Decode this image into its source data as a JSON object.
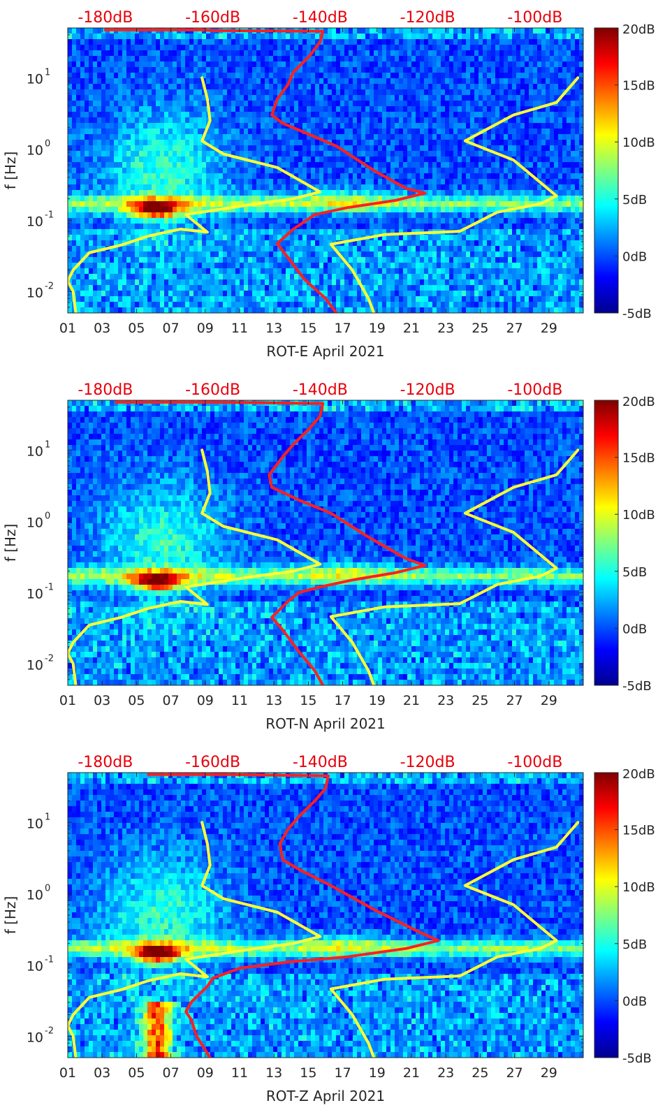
{
  "colors": {
    "jet": [
      "#00008f",
      "#0000ff",
      "#007fff",
      "#00ffff",
      "#7fff7f",
      "#ffff00",
      "#ff7f00",
      "#ff0000",
      "#7f0000"
    ],
    "model_curve": "#ff2020",
    "bound_curve": "#ffff33",
    "top_axis_labels": "#e8000b"
  },
  "chart_data": [
    {
      "type": "heatmap",
      "xlabel": "ROT-E April 2021",
      "ylabel": "f [Hz]",
      "x_ticks": [
        "01",
        "03",
        "05",
        "07",
        "09",
        "11",
        "13",
        "15",
        "17",
        "19",
        "21",
        "23",
        "25",
        "27",
        "29"
      ],
      "x_range_days": [
        1,
        31
      ],
      "y_scale": "log",
      "y_range_hz": [
        0.005,
        50
      ],
      "y_ticks": [
        {
          "exp": "-2",
          "value": 0.01
        },
        {
          "exp": "-1",
          "value": 0.1
        },
        {
          "exp": "0",
          "value": 1
        },
        {
          "exp": "1",
          "value": 10
        }
      ],
      "top_axis_ticks": [
        "-180dB",
        "-160dB",
        "-140dB",
        "-120dB",
        "-100dB"
      ],
      "top_axis_range_db": [
        -187,
        -91
      ],
      "colorbar": {
        "labels": [
          "20dB",
          "15dB",
          "10dB",
          "5dB",
          "0dB",
          "-5dB"
        ],
        "range_db": [
          -5,
          20
        ]
      },
      "series": [
        {
          "color": "red",
          "points": [
            [
              -120.5,
              0.24
            ],
            [
              -124,
              0.28
            ],
            [
              -130,
              0.5
            ],
            [
              -137,
              1.1
            ],
            [
              -142,
              1.6
            ],
            [
              -147,
              2.3
            ],
            [
              -149,
              3.0
            ],
            [
              -148,
              5
            ],
            [
              -146,
              8
            ],
            [
              -145,
              12
            ],
            [
              -142,
              20
            ],
            [
              -140,
              32
            ],
            [
              -139.5,
              45
            ],
            [
              -160,
              46
            ],
            [
              -162,
              47
            ],
            [
              -180,
              47
            ]
          ]
        },
        {
          "color": "red",
          "points": [
            [
              -120.5,
              0.24
            ],
            [
              -126,
              0.19
            ],
            [
              -135,
              0.15
            ],
            [
              -141,
              0.12
            ],
            [
              -143,
              0.095
            ],
            [
              -145,
              0.075
            ],
            [
              -148,
              0.047
            ],
            [
              -146,
              0.03
            ],
            [
              -143,
              0.015
            ],
            [
              -139,
              0.008
            ],
            [
              -137,
              0.005
            ]
          ]
        },
        {
          "color": "yellow",
          "points": [
            [
              -162,
              10
            ],
            [
              -161,
              5
            ],
            [
              -160.5,
              2.5
            ],
            [
              -162,
              1.3
            ],
            [
              -158,
              0.85
            ],
            [
              -148,
              0.55
            ],
            [
              -140,
              0.25
            ],
            [
              -145,
              0.2
            ],
            [
              -152,
              0.17
            ],
            [
              -162,
              0.13
            ],
            [
              -165,
              0.12
            ],
            [
              -161,
              0.068
            ],
            [
              -166,
              0.075
            ],
            [
              -172,
              0.06
            ],
            [
              -177,
              0.045
            ],
            [
              -183,
              0.035
            ],
            [
              -186,
              0.02
            ],
            [
              -187,
              0.014
            ],
            [
              -186,
              0.01
            ],
            [
              -185.5,
              0.005
            ]
          ]
        },
        {
          "color": "yellow",
          "points": [
            [
              -92,
              10
            ],
            [
              -96,
              4.5
            ],
            [
              -104,
              3.0
            ],
            [
              -113,
              1.3
            ],
            [
              -104,
              0.7
            ],
            [
              -96,
              0.22
            ],
            [
              -99,
              0.17
            ],
            [
              -107,
              0.13
            ],
            [
              -114,
              0.07
            ],
            [
              -128,
              0.063
            ],
            [
              -138,
              0.046
            ],
            [
              -134,
              0.02
            ],
            [
              -131,
              0.008
            ],
            [
              -130,
              0.005
            ]
          ]
        }
      ]
    },
    {
      "type": "heatmap",
      "xlabel": "ROT-N April 2021",
      "ylabel": "f [Hz]",
      "x_ticks": [
        "01",
        "03",
        "05",
        "07",
        "09",
        "11",
        "13",
        "15",
        "17",
        "19",
        "21",
        "23",
        "25",
        "27",
        "29"
      ],
      "x_range_days": [
        1,
        31
      ],
      "y_scale": "log",
      "y_range_hz": [
        0.005,
        50
      ],
      "y_ticks": [
        {
          "exp": "-2",
          "value": 0.01
        },
        {
          "exp": "-1",
          "value": 0.1
        },
        {
          "exp": "0",
          "value": 1
        },
        {
          "exp": "1",
          "value": 10
        }
      ],
      "top_axis_ticks": [
        "-180dB",
        "-160dB",
        "-140dB",
        "-120dB",
        "-100dB"
      ],
      "top_axis_range_db": [
        -187,
        -91
      ],
      "colorbar": {
        "labels": [
          "20dB",
          "15dB",
          "10dB",
          "5dB",
          "0dB",
          "-5dB"
        ],
        "range_db": [
          -5,
          20
        ]
      },
      "series": [
        {
          "color": "red",
          "points": [
            [
              -120.5,
              0.24
            ],
            [
              -124,
              0.3
            ],
            [
              -131,
              0.6
            ],
            [
              -138,
              1.3
            ],
            [
              -144,
              2.0
            ],
            [
              -149,
              3.0
            ],
            [
              -149.5,
              4.5
            ],
            [
              -147,
              8
            ],
            [
              -145,
              12
            ],
            [
              -142,
              20
            ],
            [
              -140,
              30
            ],
            [
              -139.5,
              45
            ],
            [
              -160,
              47
            ],
            [
              -178,
              47
            ]
          ]
        },
        {
          "color": "red",
          "points": [
            [
              -120.5,
              0.24
            ],
            [
              -126,
              0.19
            ],
            [
              -134,
              0.15
            ],
            [
              -140,
              0.12
            ],
            [
              -144,
              0.1
            ],
            [
              -146,
              0.075
            ],
            [
              -149,
              0.045
            ],
            [
              -147,
              0.03
            ],
            [
              -144,
              0.015
            ],
            [
              -141,
              0.008
            ],
            [
              -139.5,
              0.005
            ]
          ]
        },
        {
          "color": "yellow",
          "points": [
            [
              -162,
              10
            ],
            [
              -161,
              5
            ],
            [
              -160.5,
              2.5
            ],
            [
              -162,
              1.3
            ],
            [
              -158,
              0.85
            ],
            [
              -148,
              0.55
            ],
            [
              -140,
              0.25
            ],
            [
              -145,
              0.2
            ],
            [
              -152,
              0.17
            ],
            [
              -162,
              0.13
            ],
            [
              -165,
              0.12
            ],
            [
              -161,
              0.068
            ],
            [
              -166,
              0.075
            ],
            [
              -172,
              0.06
            ],
            [
              -177,
              0.045
            ],
            [
              -183,
              0.035
            ],
            [
              -186,
              0.02
            ],
            [
              -187,
              0.014
            ],
            [
              -186,
              0.01
            ],
            [
              -185.5,
              0.005
            ]
          ]
        },
        {
          "color": "yellow",
          "points": [
            [
              -92,
              10
            ],
            [
              -96,
              4.5
            ],
            [
              -104,
              3.0
            ],
            [
              -113,
              1.3
            ],
            [
              -104,
              0.7
            ],
            [
              -96,
              0.22
            ],
            [
              -99,
              0.17
            ],
            [
              -107,
              0.13
            ],
            [
              -114,
              0.07
            ],
            [
              -128,
              0.063
            ],
            [
              -138,
              0.046
            ],
            [
              -134,
              0.02
            ],
            [
              -131,
              0.008
            ],
            [
              -130,
              0.005
            ]
          ]
        }
      ]
    },
    {
      "type": "heatmap",
      "xlabel": "ROT-Z April 2021",
      "ylabel": "f [Hz]",
      "x_ticks": [
        "01",
        "03",
        "05",
        "07",
        "09",
        "11",
        "13",
        "15",
        "17",
        "19",
        "21",
        "23",
        "25",
        "27",
        "29"
      ],
      "x_range_days": [
        1,
        31
      ],
      "y_scale": "log",
      "y_range_hz": [
        0.005,
        50
      ],
      "y_ticks": [
        {
          "exp": "-2",
          "value": 0.01
        },
        {
          "exp": "-1",
          "value": 0.1
        },
        {
          "exp": "0",
          "value": 1
        },
        {
          "exp": "1",
          "value": 10
        }
      ],
      "top_axis_ticks": [
        "-180dB",
        "-160dB",
        "-140dB",
        "-120dB",
        "-100dB"
      ],
      "top_axis_range_db": [
        -187,
        -91
      ],
      "colorbar": {
        "labels": [
          "20dB",
          "15dB",
          "10dB",
          "5dB",
          "0dB",
          "-5dB"
        ],
        "range_db": [
          -5,
          20
        ]
      },
      "series": [
        {
          "color": "red",
          "points": [
            [
              -118,
              0.22
            ],
            [
              -122,
              0.3
            ],
            [
              -130,
              0.6
            ],
            [
              -138,
              1.3
            ],
            [
              -144,
              2.2
            ],
            [
              -147,
              3.0
            ],
            [
              -147.5,
              5
            ],
            [
              -146,
              8
            ],
            [
              -144,
              12
            ],
            [
              -141,
              20
            ],
            [
              -139,
              30
            ],
            [
              -138.5,
              45
            ],
            [
              -157,
              47
            ],
            [
              -172,
              47
            ]
          ]
        },
        {
          "color": "red",
          "points": [
            [
              -118,
              0.22
            ],
            [
              -124,
              0.17
            ],
            [
              -135,
              0.13
            ],
            [
              -146,
              0.11
            ],
            [
              -155,
              0.09
            ],
            [
              -160,
              0.065
            ],
            [
              -161,
              0.05
            ],
            [
              -164,
              0.03
            ],
            [
              -165,
              0.022
            ],
            [
              -164,
              0.017
            ],
            [
              -163,
              0.01
            ],
            [
              -160.5,
              0.005
            ]
          ]
        },
        {
          "color": "yellow",
          "points": [
            [
              -162,
              10
            ],
            [
              -161,
              5
            ],
            [
              -160.5,
              2.5
            ],
            [
              -162,
              1.3
            ],
            [
              -158,
              0.85
            ],
            [
              -148,
              0.55
            ],
            [
              -140,
              0.25
            ],
            [
              -145,
              0.2
            ],
            [
              -152,
              0.17
            ],
            [
              -162,
              0.13
            ],
            [
              -165,
              0.12
            ],
            [
              -161,
              0.068
            ],
            [
              -166,
              0.075
            ],
            [
              -172,
              0.06
            ],
            [
              -177,
              0.045
            ],
            [
              -183,
              0.035
            ],
            [
              -186,
              0.02
            ],
            [
              -187,
              0.014
            ],
            [
              -186,
              0.01
            ],
            [
              -185.5,
              0.005
            ]
          ]
        },
        {
          "color": "yellow",
          "points": [
            [
              -92,
              10
            ],
            [
              -96,
              4.5
            ],
            [
              -104,
              3.0
            ],
            [
              -113,
              1.3
            ],
            [
              -104,
              0.7
            ],
            [
              -96,
              0.22
            ],
            [
              -99,
              0.17
            ],
            [
              -107,
              0.13
            ],
            [
              -114,
              0.07
            ],
            [
              -128,
              0.063
            ],
            [
              -138,
              0.046
            ],
            [
              -134,
              0.02
            ],
            [
              -131,
              0.008
            ],
            [
              -130,
              0.005
            ]
          ]
        }
      ]
    }
  ]
}
